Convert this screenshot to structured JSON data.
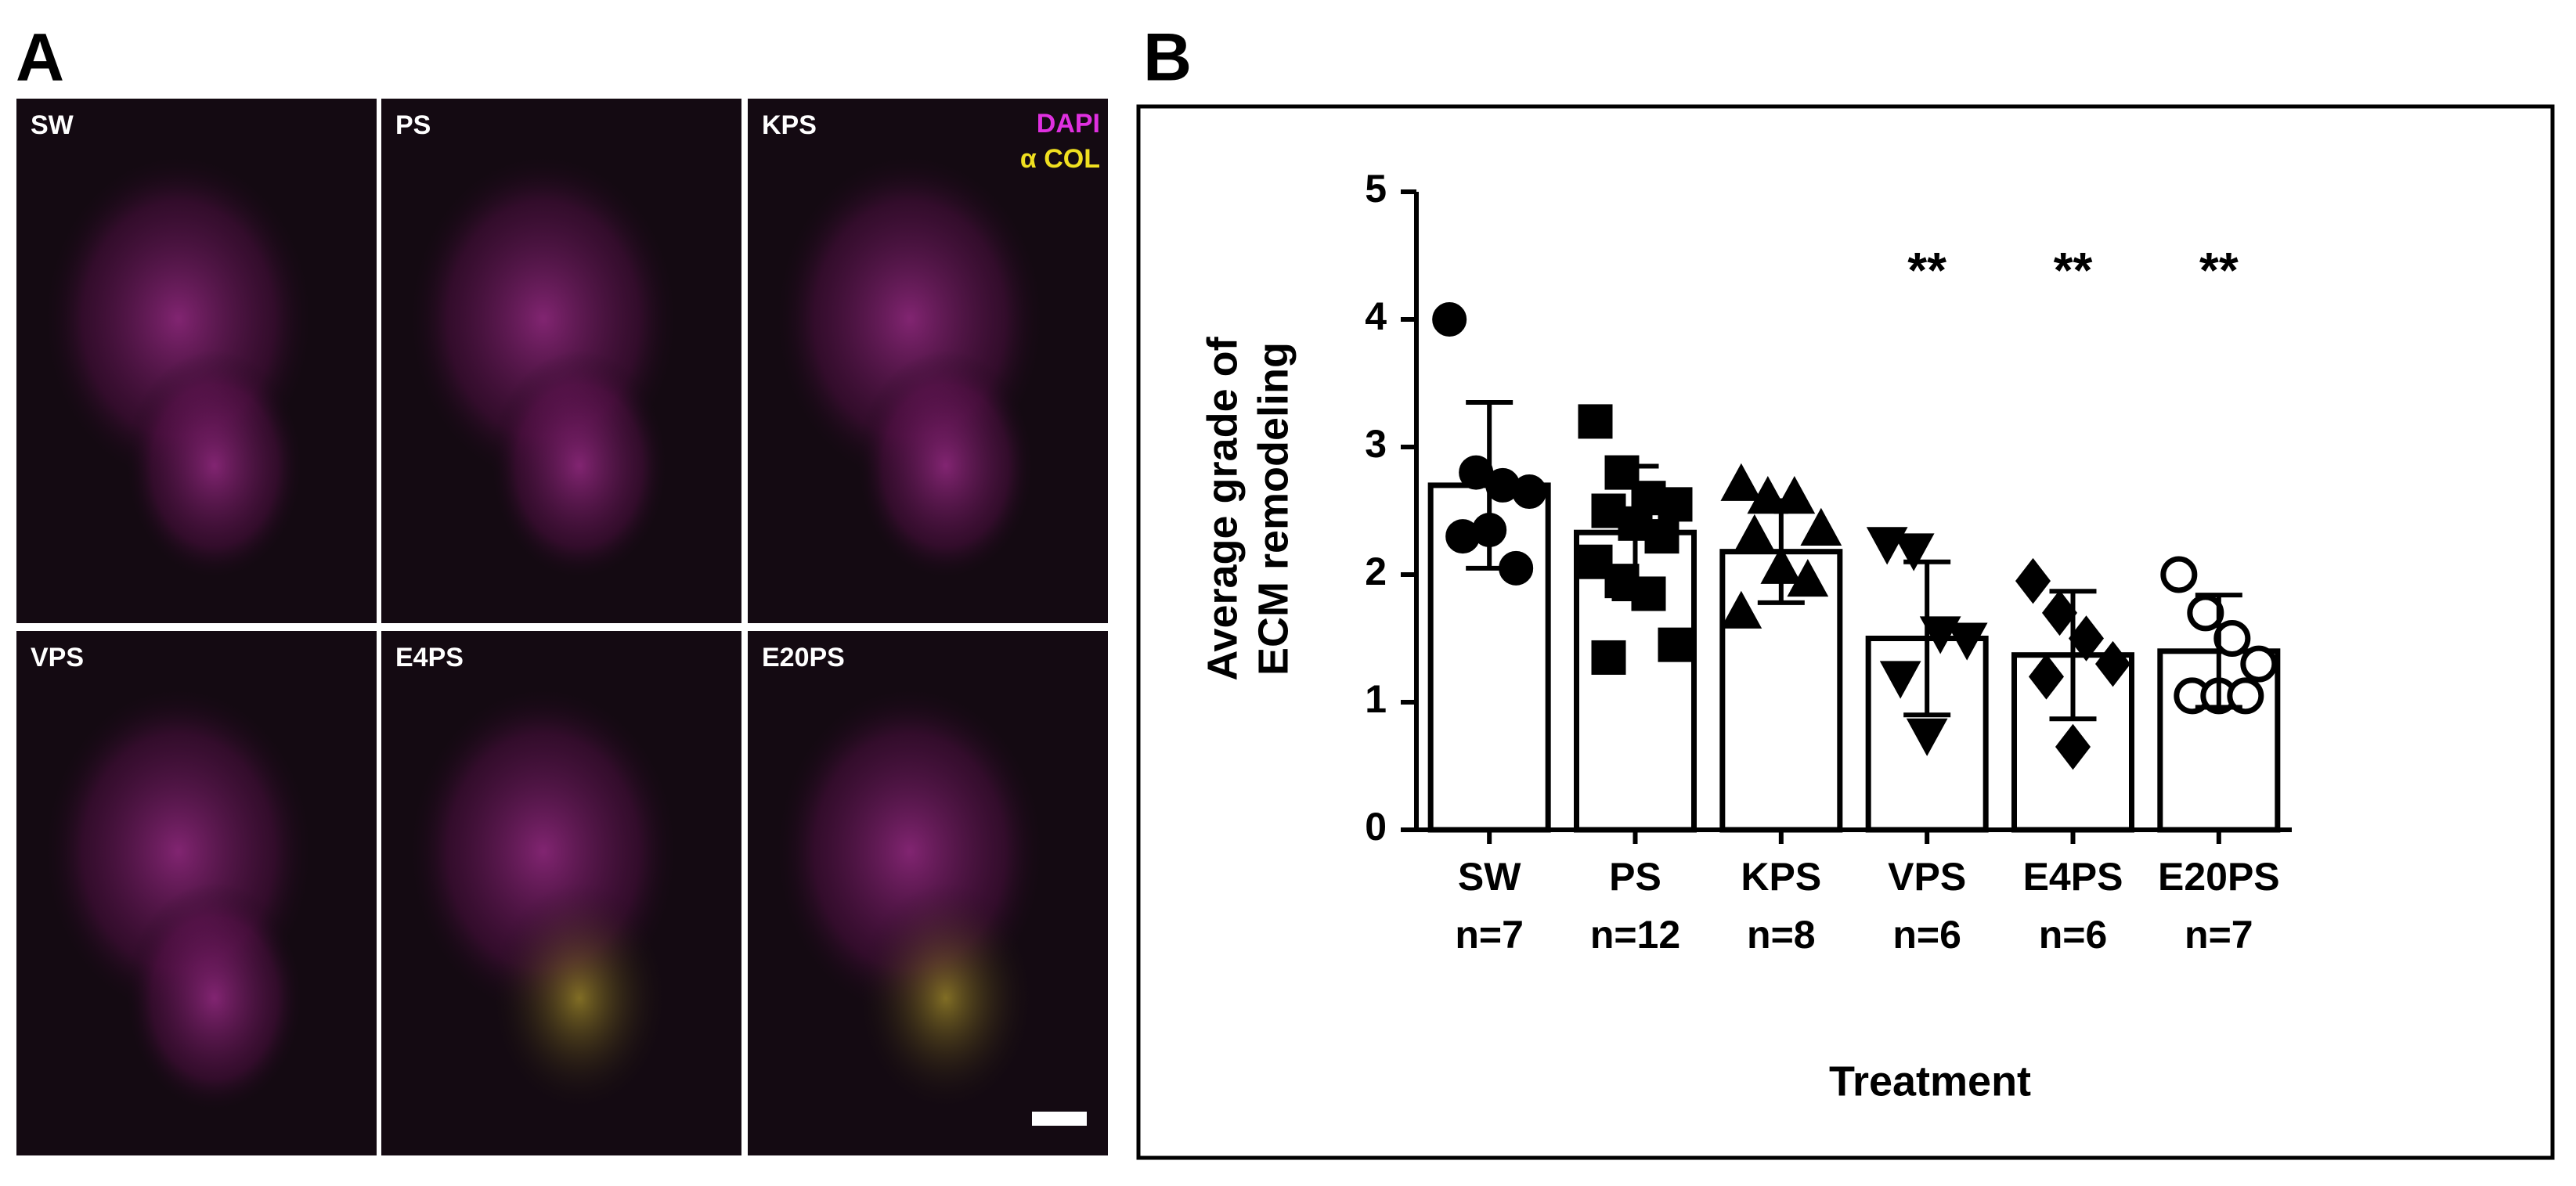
{
  "panel_a": {
    "label": "A",
    "images": [
      "SW",
      "PS",
      "KPS",
      "VPS",
      "E4PS",
      "E20PS"
    ],
    "legend": [
      "DAPI",
      "α COL"
    ]
  },
  "chart_data": {
    "type": "bar",
    "panel_label": "B",
    "y_label": [
      "Average grade of",
      "ECM remodeling"
    ],
    "x_label": "Treatment",
    "categories": [
      "SW",
      "PS",
      "KPS",
      "VPS",
      "E4PS",
      "E20PS"
    ],
    "n_labels": [
      "n=7",
      "n=12",
      "n=8",
      "n=6",
      "n=6",
      "n=7"
    ],
    "values": [
      2.7,
      2.33,
      2.18,
      1.5,
      1.37,
      1.4
    ],
    "errors": [
      0.65,
      0.52,
      0.4,
      0.6,
      0.5,
      0.44
    ],
    "points": [
      [
        4.0,
        2.8,
        2.7,
        2.65,
        2.3,
        2.35,
        2.05
      ],
      [
        3.2,
        2.8,
        2.6,
        2.55,
        2.5,
        2.4,
        2.3,
        2.1,
        1.95,
        1.85,
        1.45,
        1.35
      ],
      [
        2.7,
        2.6,
        2.6,
        2.35,
        2.3,
        2.05,
        1.95,
        1.7
      ],
      [
        2.25,
        2.2,
        1.55,
        1.5,
        1.2,
        0.75
      ],
      [
        1.95,
        1.7,
        1.5,
        1.3,
        1.2,
        0.65
      ],
      [
        2.0,
        1.7,
        1.5,
        1.3,
        1.05,
        1.05,
        1.05
      ]
    ],
    "markers": [
      "circle",
      "square",
      "triangle-up",
      "triangle-down",
      "diamond",
      "open-circle"
    ],
    "significance": [
      null,
      null,
      null,
      "**",
      "**",
      "**"
    ],
    "color": "#000000",
    "ylim": [
      0,
      5
    ],
    "yticks": [
      0,
      1,
      2,
      3,
      4,
      5
    ],
    "grid": false
  }
}
